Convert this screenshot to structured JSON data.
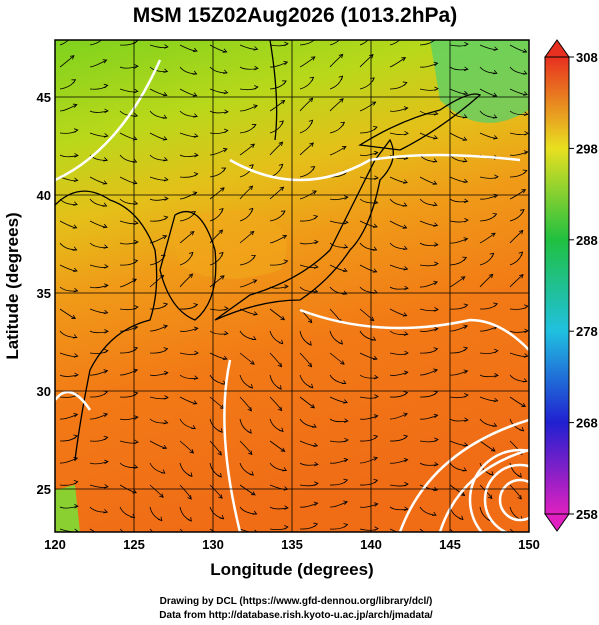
{
  "title": "MSM 15Z02Aug2026 (1013.2hPa)",
  "x_axis": {
    "label": "Longitude (degrees)",
    "lim": [
      120,
      150
    ],
    "ticks": [
      120,
      125,
      130,
      135,
      140,
      145,
      150
    ]
  },
  "y_axis": {
    "label": "Latitude  (degrees)",
    "ticks": [
      25,
      30,
      35,
      40,
      45
    ]
  },
  "colorbar": {
    "lim": [
      258,
      308
    ],
    "ticks": [
      258,
      268,
      278,
      288,
      298,
      308
    ]
  },
  "credits": [
    "Drawing by DCL (https://www.gfd-dennou.org/library/dcl/)",
    "Data from http://database.rish.kyoto-u.ac.jp/arch/jmadata/"
  ]
}
